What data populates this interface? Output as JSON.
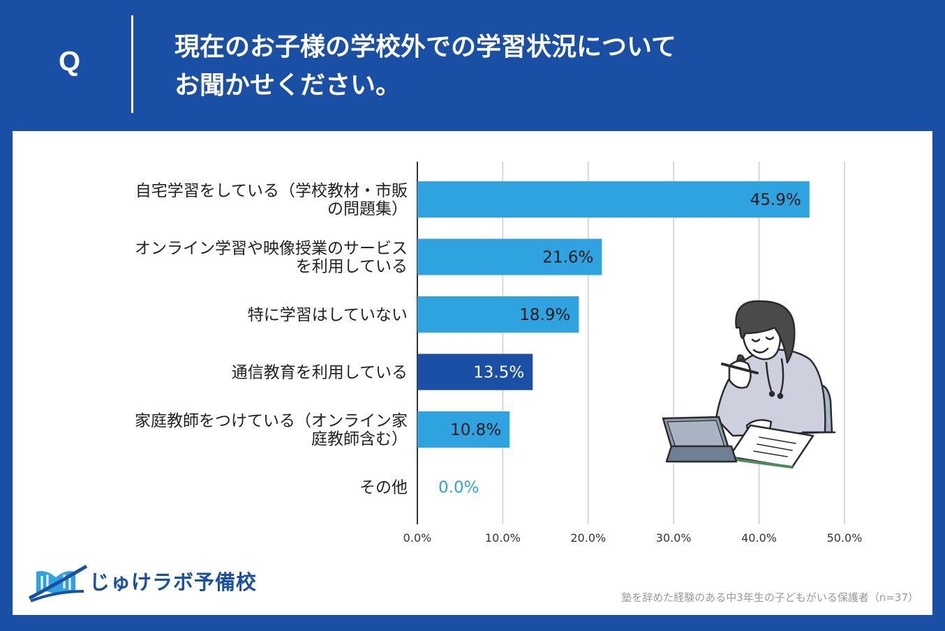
{
  "header": {
    "q_label": "Q",
    "title_line1": "現在のお子様の学校外での学習状況について",
    "title_line2": "お聞かせください。"
  },
  "chart_data": {
    "type": "bar",
    "orientation": "horizontal",
    "categories": [
      [
        "自宅学習をしている（学校教材・市販",
        "の問題集）"
      ],
      [
        "オンライン学習や映像授業のサービス",
        "を利用している"
      ],
      [
        "特に学習はしていない"
      ],
      [
        "通信教育を利用している"
      ],
      [
        "家庭教師をつけている（オンライン家",
        "庭教師含む）"
      ],
      [
        "その他"
      ]
    ],
    "values": [
      45.9,
      21.6,
      18.9,
      13.5,
      10.8,
      0.0
    ],
    "value_labels": [
      "45.9%",
      "21.6%",
      "18.9%",
      "13.5%",
      "10.8%",
      "0.0%"
    ],
    "bar_colors": [
      "#2ea3df",
      "#2ea3df",
      "#2ea3df",
      "#1a4fa6",
      "#2ea3df",
      "#2ea3df"
    ],
    "xlim": [
      0,
      50
    ],
    "xticks": [
      "0.0%",
      "10.0%",
      "20.0%",
      "30.0%",
      "40.0%",
      "50.0%"
    ],
    "grid": true
  },
  "logo": {
    "text": "じゅけラボ予備校"
  },
  "footnote": "塾を辞めた経験のある中3年生の子どもがいる保護者（n=37）",
  "colors": {
    "brand": "#1a4fa6",
    "bar": "#2ea3df",
    "highlight": "#1a4fa6"
  }
}
